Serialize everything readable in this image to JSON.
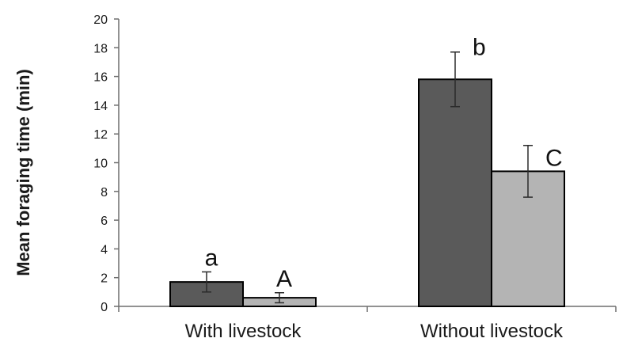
{
  "chart_data": {
    "type": "bar",
    "title": "",
    "xlabel": "",
    "ylabel": "Mean foraging time (min)",
    "ylim": [
      0,
      20
    ],
    "yticks": [
      "0",
      "2",
      "4",
      "6",
      "8",
      "10",
      "12",
      "14",
      "16",
      "18",
      "20"
    ],
    "grid": false,
    "legend": "none",
    "categories": [
      "With livestock",
      "Without livestock"
    ],
    "series": [
      {
        "color": "#5a5a5a",
        "values": [
          1.7,
          15.8
        ],
        "errors": [
          0.7,
          1.9
        ],
        "annotations": [
          "a",
          "b"
        ]
      },
      {
        "color": "#b4b4b4",
        "values": [
          0.6,
          9.4
        ],
        "errors": [
          0.35,
          1.8
        ],
        "annotations": [
          "A",
          "C"
        ]
      }
    ]
  }
}
